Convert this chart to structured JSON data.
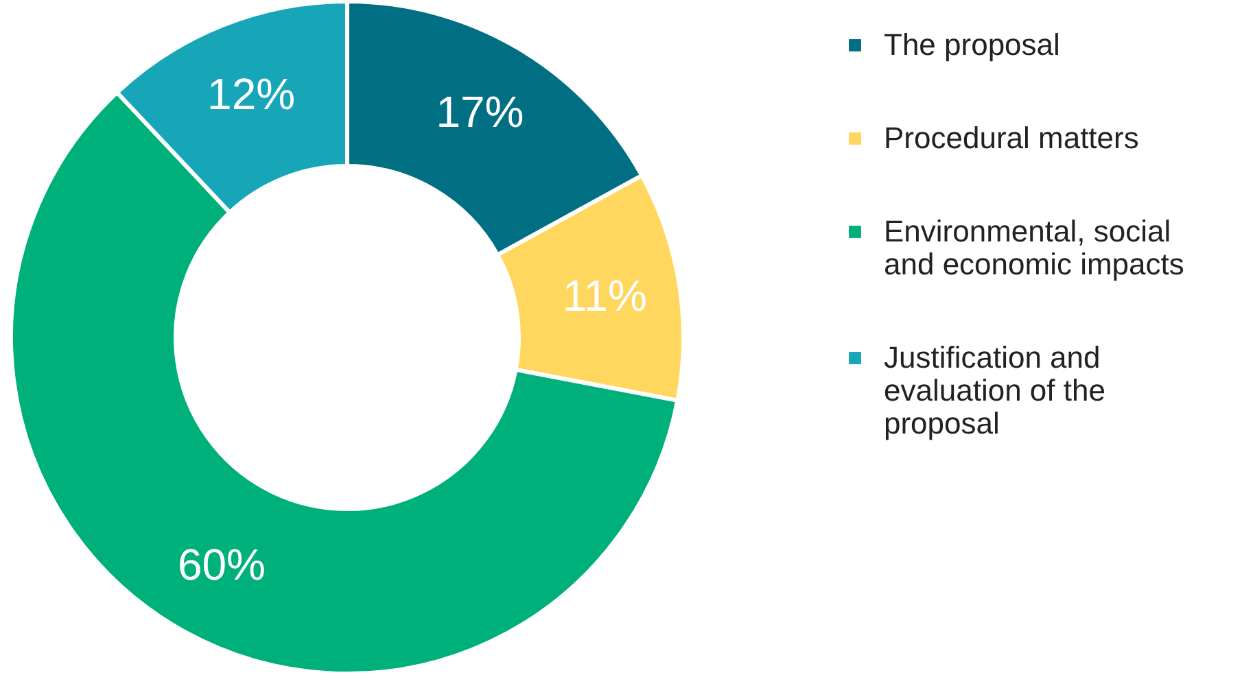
{
  "chart_data": {
    "type": "donut",
    "categories": [
      "The proposal",
      "Procedural matters",
      "Environmental, social and economic impacts",
      "Justification and evaluation of the proposal"
    ],
    "values": [
      17,
      11,
      60,
      12
    ],
    "colors": [
      "#006f84",
      "#ffd75e",
      "#00b07a",
      "#17a6b8"
    ],
    "value_labels": [
      "17%",
      "11%",
      "60%",
      "12%"
    ],
    "legend": "right"
  }
}
